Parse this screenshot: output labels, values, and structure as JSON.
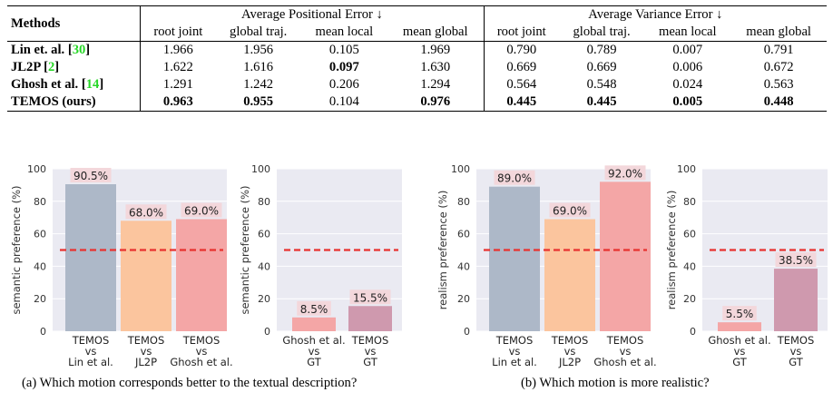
{
  "table": {
    "methods_header": "Methods",
    "group_headers": [
      "Average Positional Error ↓",
      "Average Variance Error ↓"
    ],
    "sub_headers": [
      "root joint",
      "global traj.",
      "mean local",
      "mean global",
      "root joint",
      "global traj.",
      "mean local",
      "mean global"
    ],
    "rows": [
      {
        "method": "Lin et. al.",
        "cite": "30",
        "values": [
          "1.966",
          "1.956",
          "0.105",
          "1.969",
          "0.790",
          "0.789",
          "0.007",
          "0.791"
        ],
        "bold": [
          false,
          false,
          false,
          false,
          false,
          false,
          false,
          false
        ]
      },
      {
        "method": "JL2P",
        "cite": "2",
        "values": [
          "1.622",
          "1.616",
          "0.097",
          "1.630",
          "0.669",
          "0.669",
          "0.006",
          "0.672"
        ],
        "bold": [
          false,
          false,
          true,
          false,
          false,
          false,
          false,
          false
        ]
      },
      {
        "method": "Ghosh et al.",
        "cite": "14",
        "values": [
          "1.291",
          "1.242",
          "0.206",
          "1.294",
          "0.564",
          "0.548",
          "0.024",
          "0.563"
        ],
        "bold": [
          false,
          false,
          false,
          false,
          false,
          false,
          false,
          false
        ]
      },
      {
        "method": "TEMOS (ours)",
        "cite": "",
        "values": [
          "0.963",
          "0.955",
          "0.104",
          "0.976",
          "0.445",
          "0.445",
          "0.005",
          "0.448"
        ],
        "bold": [
          true,
          true,
          false,
          true,
          true,
          true,
          true,
          true
        ]
      }
    ]
  },
  "colors": {
    "plot_bg": "#eaeaf2",
    "grid": "#ffffff",
    "reference_line": "#e8322f",
    "label_bg": "#f3d7db",
    "blue_grey": "#adb8c8",
    "peach": "#fbc59e",
    "pink": "#f4a6a6",
    "mauve": "#cf99ae",
    "cite": "#26d726"
  },
  "chart_data": [
    {
      "type": "bar",
      "ylabel": "semantic preference (%)",
      "ylim": [
        0,
        100
      ],
      "yticks": [
        "0",
        "20",
        "40",
        "60",
        "80",
        "100"
      ],
      "reference_y": 50,
      "categories": [
        [
          "TEMOS",
          "vs",
          "Lin et al."
        ],
        [
          "TEMOS",
          "vs",
          "JL2P"
        ],
        [
          "TEMOS",
          "vs",
          "Ghosh et al."
        ]
      ],
      "values": [
        90.5,
        68.0,
        69.0
      ],
      "value_labels": [
        "90.5%",
        "68.0%",
        "69.0%"
      ],
      "bar_colors": [
        "blue_grey",
        "peach",
        "pink"
      ]
    },
    {
      "type": "bar",
      "ylabel": "semantic preference (%)",
      "ylim": [
        0,
        100
      ],
      "yticks": [
        "0",
        "20",
        "40",
        "60",
        "80",
        "100"
      ],
      "reference_y": 50,
      "categories": [
        [
          "Ghosh et al.",
          "vs",
          "GT"
        ],
        [
          "TEMOS",
          "vs",
          "GT"
        ]
      ],
      "values": [
        8.5,
        15.5
      ],
      "value_labels": [
        "8.5%",
        "15.5%"
      ],
      "bar_colors": [
        "pink",
        "mauve"
      ]
    },
    {
      "type": "bar",
      "ylabel": "realism preference (%)",
      "ylim": [
        0,
        100
      ],
      "yticks": [
        "0",
        "20",
        "40",
        "60",
        "80",
        "100"
      ],
      "reference_y": 50,
      "categories": [
        [
          "TEMOS",
          "vs",
          "Lin et al."
        ],
        [
          "TEMOS",
          "vs",
          "JL2P"
        ],
        [
          "TEMOS",
          "vs",
          "Ghosh et al."
        ]
      ],
      "values": [
        89.0,
        69.0,
        92.0
      ],
      "value_labels": [
        "89.0%",
        "69.0%",
        "92.0%"
      ],
      "bar_colors": [
        "blue_grey",
        "peach",
        "pink"
      ]
    },
    {
      "type": "bar",
      "ylabel": "realism preference (%)",
      "ylim": [
        0,
        100
      ],
      "yticks": [
        "0",
        "20",
        "40",
        "60",
        "80",
        "100"
      ],
      "reference_y": 50,
      "categories": [
        [
          "Ghosh et al.",
          "vs",
          "GT"
        ],
        [
          "TEMOS",
          "vs",
          "GT"
        ]
      ],
      "values": [
        5.5,
        38.5
      ],
      "value_labels": [
        "5.5%",
        "38.5%"
      ],
      "bar_colors": [
        "pink",
        "mauve"
      ]
    }
  ],
  "captions": {
    "a": "(a) Which motion corresponds better to the textual description?",
    "b": "(b) Which motion is more realistic?"
  }
}
